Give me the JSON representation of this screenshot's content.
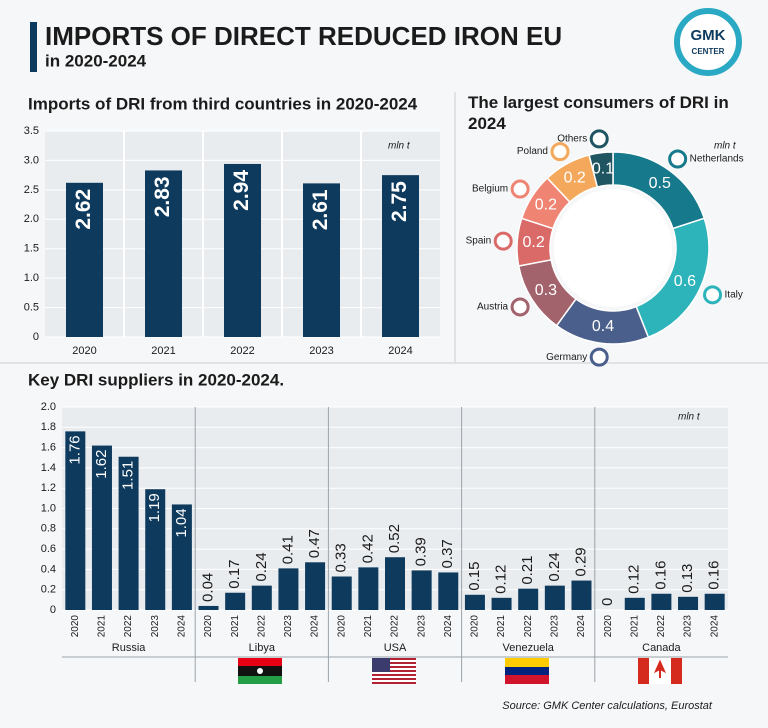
{
  "header": {
    "title": "IMPORTS OF DIRECT REDUCED IRON EU",
    "subtitle": "in 2020-2024",
    "logo": {
      "line1": "GMK",
      "line2": "CENTER"
    }
  },
  "chart_data": [
    {
      "type": "bar",
      "title": "Imports of DRI from third countries in 2020-2024",
      "unit": "mln t",
      "categories": [
        "2020",
        "2021",
        "2022",
        "2023",
        "2024"
      ],
      "values": [
        2.62,
        2.83,
        2.94,
        2.61,
        2.75
      ],
      "color": "#0e3a5d",
      "ylim": [
        0,
        3.5
      ],
      "yticks": [
        0,
        0.5,
        {
          "value": 1,
          "label": "1.0"
        },
        1.5,
        {
          "value": 2,
          "label": "2.0"
        },
        2.5,
        {
          "value": 3,
          "label": "3.0"
        },
        3.5
      ],
      "grid": true
    },
    {
      "type": "donut",
      "title": "The largest consumers of DRI in 2024",
      "unit": "mln t",
      "categories": [
        "Netherlands",
        "Italy",
        "Germany",
        "Austria",
        "Spain",
        "Belgium",
        "Poland",
        "Others"
      ],
      "values": [
        0.5,
        0.6,
        0.4,
        0.3,
        0.2,
        0.2,
        0.2,
        0.1
      ],
      "colors": [
        "#17798c",
        "#2db3ba",
        "#4b5f8c",
        "#a3636d",
        "#d96a68",
        "#ef8472",
        "#f4a85c",
        "#1f5560"
      ]
    },
    {
      "type": "grouped_bar",
      "title": "Key DRI suppliers in 2020-2024.",
      "unit": "mln t",
      "subcategories": [
        "2020",
        "2021",
        "2022",
        "2023",
        "2024"
      ],
      "groups": [
        {
          "name": "Russia",
          "values": [
            1.76,
            1.62,
            1.51,
            1.19,
            1.04
          ]
        },
        {
          "name": "Libya",
          "values": [
            0.04,
            0.17,
            0.24,
            0.41,
            0.47
          ]
        },
        {
          "name": "USA",
          "values": [
            0.33,
            0.42,
            0.52,
            0.39,
            0.37
          ]
        },
        {
          "name": "Venezuela",
          "values": [
            0.15,
            0.12,
            0.21,
            0.24,
            0.29
          ]
        },
        {
          "name": "Canada",
          "values": [
            0,
            0.12,
            0.16,
            0.13,
            0.16
          ]
        }
      ],
      "color": "#0e3a5d",
      "ylim": [
        0,
        2
      ],
      "yticks": [
        0,
        0.2,
        0.4,
        0.6,
        0.8,
        {
          "value": 1,
          "label": "1.0"
        },
        1.2,
        1.4,
        1.6,
        1.8,
        {
          "value": 2,
          "label": "2.0"
        }
      ],
      "grid": true
    }
  ],
  "source": "Source: GMK Center calculations, Eurostat"
}
